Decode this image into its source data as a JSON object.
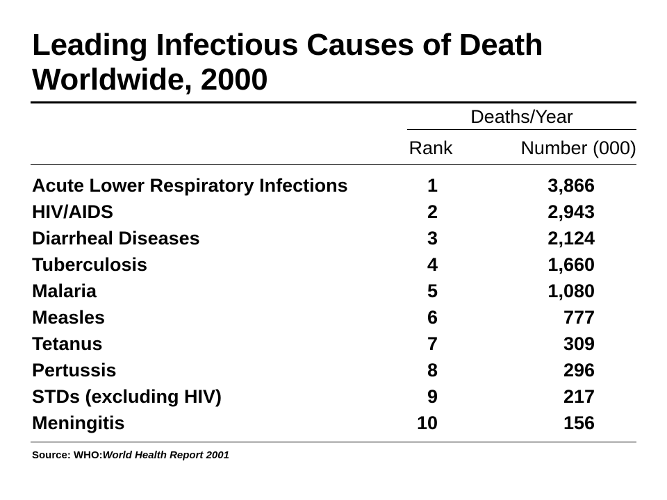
{
  "title": {
    "line1": "Leading Infectious Causes of Death",
    "line2": "Worldwide, 2000"
  },
  "table": {
    "group_header": "Deaths/Year",
    "columns": {
      "rank": "Rank",
      "number": "Number (000)"
    },
    "rows": [
      {
        "cause": "Acute Lower Respiratory Infections",
        "rank": "1",
        "number": "3,866"
      },
      {
        "cause": "HIV/AIDS",
        "rank": "2",
        "number": "2,943"
      },
      {
        "cause": "Diarrheal Diseases",
        "rank": "3",
        "number": "2,124"
      },
      {
        "cause": "Tuberculosis",
        "rank": "4",
        "number": "1,660"
      },
      {
        "cause": "Malaria",
        "rank": "5",
        "number": "1,080"
      },
      {
        "cause": "Measles",
        "rank": "6",
        "number": "777"
      },
      {
        "cause": "Tetanus",
        "rank": "7",
        "number": "309"
      },
      {
        "cause": "Pertussis",
        "rank": "8",
        "number": "296"
      },
      {
        "cause": "STDs (excluding HIV)",
        "rank": "9",
        "number": "217"
      },
      {
        "cause": "Meningitis",
        "rank": "10",
        "number": "156"
      }
    ]
  },
  "source": {
    "prefix": "Source: WHO:",
    "reference": "World Health Report 2001"
  }
}
